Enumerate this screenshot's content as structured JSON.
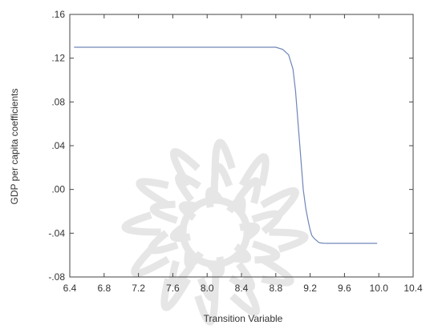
{
  "chart_data": {
    "type": "line",
    "title": "",
    "xlabel": "Transition Variable",
    "ylabel": "GDP per capita  coefficients",
    "xlim": [
      6.4,
      10.4
    ],
    "ylim": [
      -0.08,
      0.16
    ],
    "x_ticks": [
      6.4,
      6.8,
      7.2,
      7.6,
      8.0,
      8.4,
      8.8,
      9.2,
      9.6,
      10.0,
      10.4
    ],
    "x_tick_labels": [
      "6.4",
      "6.8",
      "7.2",
      "7.6",
      "8.0",
      "8.4",
      "8.8",
      "9.2",
      "9.6",
      "10.0",
      "10.4"
    ],
    "y_ticks": [
      -0.08,
      -0.04,
      0.0,
      0.04,
      0.08,
      0.12,
      0.16
    ],
    "y_tick_labels": [
      "-.08",
      "-.04",
      ".00",
      ".04",
      ".08",
      ".12",
      ".16"
    ],
    "grid": false,
    "legend": "none",
    "line_color": "#6f86b8",
    "series": [
      {
        "x": [
          6.45,
          8.8,
          8.88,
          8.95,
          9.0,
          9.03,
          9.06,
          9.09,
          9.12,
          9.15,
          9.18,
          9.2,
          9.22,
          9.25,
          9.28,
          9.3,
          9.33,
          9.36,
          9.4,
          9.5,
          9.7,
          9.98
        ],
        "values": [
          0.13,
          0.13,
          0.128,
          0.123,
          0.11,
          0.09,
          0.06,
          0.03,
          0.0,
          -0.018,
          -0.03,
          -0.037,
          -0.042,
          -0.045,
          -0.047,
          -0.0485,
          -0.049,
          -0.0492,
          -0.0493,
          -0.0493,
          -0.0493,
          -0.0493
        ]
      }
    ]
  }
}
